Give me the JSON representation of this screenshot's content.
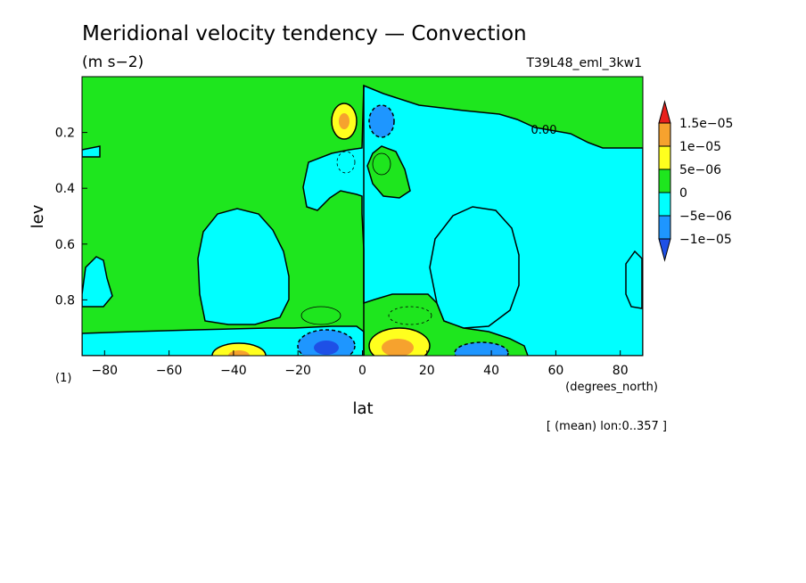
{
  "chart_data": {
    "type": "heatmap",
    "title": "Meridional velocity tendency — Convection",
    "units": "(m s−2)",
    "run_label": "T39L48_eml_3kw1",
    "xlabel": "lat",
    "x_units": "(degrees_north)",
    "ylabel": "lev",
    "y_units": "(1)",
    "footnote": "[ (mean) lon:0..357 ]",
    "xlim": [
      -87,
      87
    ],
    "ylim": [
      1.0,
      0.0
    ],
    "x_ticks": [
      "−80",
      "−60",
      "−40",
      "−20",
      "0",
      "20",
      "40",
      "60",
      "80"
    ],
    "x_tick_values": [
      -80,
      -60,
      -40,
      -20,
      0,
      20,
      40,
      60,
      80
    ],
    "y_ticks": [
      "0.2",
      "0.4",
      "0.6",
      "0.8"
    ],
    "y_tick_values": [
      0.2,
      0.4,
      0.6,
      0.8
    ],
    "contour_label": "0.00",
    "colorbar": {
      "labels": [
        "1.5e−05",
        "1e−05",
        "5e−06",
        "0",
        "−5e−06",
        "−1e−05"
      ],
      "levels": [
        1.5e-05,
        1e-05,
        5e-06,
        0,
        -5e-06,
        -1e-05
      ],
      "colors": [
        "#e8201c",
        "#f6a22e",
        "#ffff1e",
        "#1ee61e",
        "#00ffff",
        "#1e96ff",
        "#1e50e6"
      ]
    },
    "grid": false
  }
}
